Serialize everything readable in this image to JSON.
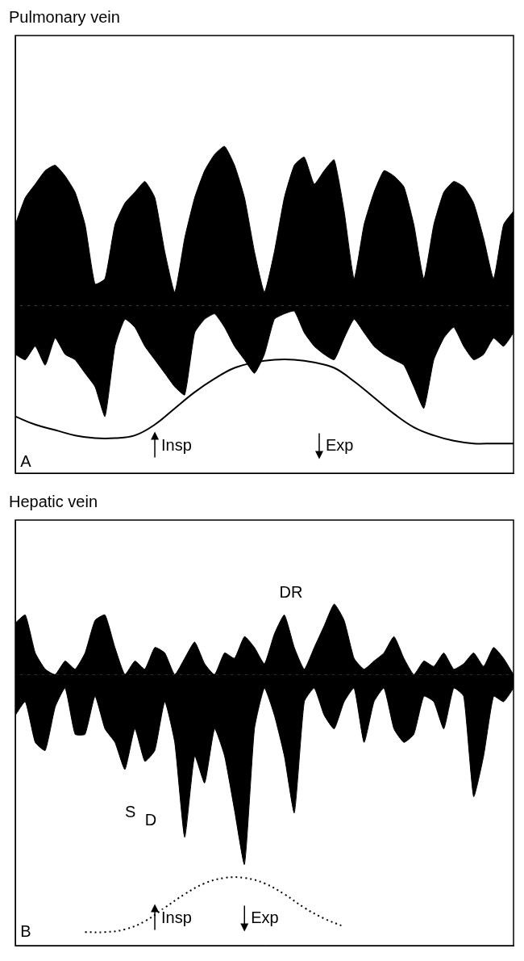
{
  "chart_data": [
    {
      "type": "line",
      "title": "Pulmonary vein",
      "x": [
        0,
        2,
        4,
        6,
        8,
        10,
        12,
        14,
        16,
        18,
        20,
        22,
        24,
        26,
        28,
        30,
        32,
        34,
        36,
        38,
        40,
        42,
        44,
        46,
        48,
        50,
        52,
        54,
        56,
        58,
        60,
        62,
        64,
        66,
        68,
        70,
        72,
        74,
        76,
        78,
        80,
        82,
        84,
        86,
        88,
        90,
        92,
        94,
        96,
        98,
        100
      ],
      "series": [
        {
          "type": "area",
          "color": "#000000",
          "values": [
            30,
            40,
            45,
            50,
            52,
            48,
            42,
            30,
            8,
            10,
            30,
            38,
            42,
            46,
            40,
            20,
            5,
            25,
            40,
            50,
            56,
            59,
            52,
            40,
            20,
            5,
            20,
            40,
            52,
            55,
            45,
            50,
            54,
            35,
            10,
            30,
            42,
            50,
            48,
            44,
            30,
            10,
            30,
            42,
            46,
            44,
            38,
            25,
            10,
            30,
            35
          ]
        },
        {
          "type": "area",
          "color": "#000000",
          "values": [
            -18,
            -20,
            -15,
            -22,
            -12,
            -18,
            -20,
            -25,
            -30,
            -41,
            -15,
            -5,
            -8,
            -15,
            -20,
            -25,
            -30,
            -33,
            -10,
            -5,
            -3,
            -8,
            -15,
            -20,
            -25,
            -18,
            -5,
            -3,
            -2,
            -10,
            -15,
            -18,
            -20,
            -12,
            -5,
            -10,
            -15,
            -18,
            -20,
            -22,
            -30,
            -38,
            -20,
            -12,
            -8,
            -15,
            -20,
            -18,
            -12,
            -15,
            -10
          ]
        },
        {
          "type": "line",
          "color": "#000000",
          "line_style": "solid",
          "x": [
            0,
            4,
            8,
            12,
            16,
            20,
            24,
            28,
            32,
            36,
            40,
            44,
            48,
            52,
            56,
            60,
            64,
            68,
            72,
            76,
            80,
            84,
            88,
            92,
            96,
            100
          ],
          "values": [
            -41,
            -44,
            -46,
            -48,
            -49,
            -49,
            -48,
            -44,
            -38,
            -32,
            -27,
            -23,
            -21,
            -20,
            -20,
            -21,
            -23,
            -28,
            -34,
            -40,
            -45,
            -48,
            -50,
            -51,
            -51,
            -51
          ]
        }
      ],
      "xlim": [
        0,
        100
      ],
      "ylim": [
        -62,
        100
      ],
      "tick_labels": false,
      "grid": false,
      "annotations": [
        {
          "text": "Insp",
          "x": 28,
          "y": -52,
          "marker": "arrow-up"
        },
        {
          "text": "Exp",
          "x": 61,
          "y": -52,
          "marker": "arrow-down"
        },
        {
          "text": "A",
          "x": 1,
          "y": -58
        }
      ]
    },
    {
      "type": "line",
      "title": "Hepatic vein",
      "x": [
        0,
        2,
        4,
        6,
        8,
        10,
        12,
        14,
        16,
        18,
        20,
        22,
        24,
        26,
        28,
        30,
        32,
        34,
        36,
        38,
        40,
        42,
        44,
        46,
        48,
        50,
        52,
        54,
        56,
        58,
        60,
        62,
        64,
        66,
        68,
        70,
        72,
        74,
        76,
        78,
        80,
        82,
        84,
        86,
        88,
        90,
        92,
        94,
        96,
        98,
        100
      ],
      "series": [
        {
          "type": "area",
          "color": "#000000",
          "values": [
            19,
            22,
            8,
            2,
            0,
            5,
            2,
            8,
            20,
            22,
            10,
            0,
            5,
            2,
            10,
            8,
            0,
            6,
            12,
            4,
            0,
            8,
            6,
            14,
            10,
            4,
            15,
            22,
            10,
            2,
            10,
            18,
            26,
            20,
            6,
            2,
            5,
            8,
            14,
            6,
            0,
            5,
            3,
            8,
            2,
            4,
            8,
            3,
            10,
            6,
            0
          ]
        },
        {
          "type": "area",
          "color": "#000000",
          "values": [
            -15,
            -10,
            -25,
            -28,
            -12,
            -5,
            -22,
            -22,
            -8,
            -20,
            -25,
            -35,
            -20,
            -32,
            -28,
            -10,
            -25,
            -60,
            -30,
            -40,
            -20,
            -30,
            -50,
            -70,
            -20,
            -5,
            -15,
            -30,
            -51,
            -10,
            -5,
            -15,
            -20,
            -10,
            -5,
            -25,
            -10,
            -5,
            -20,
            -25,
            -22,
            -8,
            -10,
            -20,
            -5,
            -8,
            -45,
            -30,
            -8,
            -10,
            -5
          ]
        },
        {
          "type": "line",
          "color": "#000000",
          "line_style": "dotted",
          "x": [
            14,
            18,
            22,
            26,
            30,
            34,
            38,
            42,
            46,
            50,
            54,
            58,
            62,
            66
          ],
          "values": [
            -95,
            -95,
            -94,
            -91,
            -86,
            -81,
            -77,
            -75,
            -75,
            -77,
            -81,
            -86,
            -90,
            -93
          ]
        }
      ],
      "xlim": [
        0,
        100
      ],
      "ylim": [
        -100,
        57
      ],
      "tick_labels": false,
      "grid": false,
      "annotations": [
        {
          "text": "DR",
          "x": 53,
          "y": 30
        },
        {
          "text": "S",
          "x": 22,
          "y": -51
        },
        {
          "text": "D",
          "x": 26,
          "y": -54
        },
        {
          "text": "Insp",
          "x": 28,
          "y": -90,
          "marker": "arrow-up"
        },
        {
          "text": "Exp",
          "x": 46,
          "y": -90,
          "marker": "arrow-down"
        },
        {
          "text": "B",
          "x": 1,
          "y": -95
        }
      ]
    }
  ]
}
